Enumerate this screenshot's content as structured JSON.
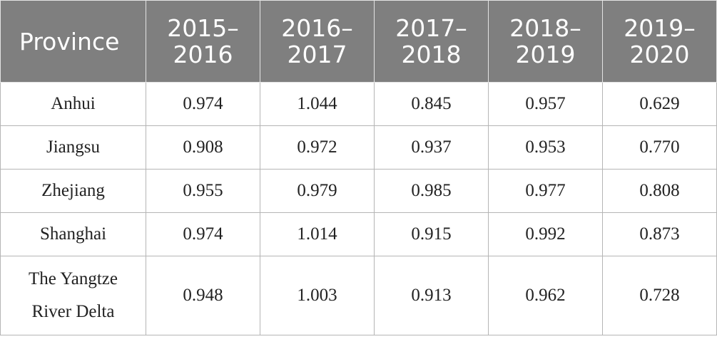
{
  "table": {
    "headers": [
      {
        "line1": "Province",
        "line2": ""
      },
      {
        "line1": "2015–",
        "line2": "2016"
      },
      {
        "line1": "2016–",
        "line2": "2017"
      },
      {
        "line1": "2017–",
        "line2": "2018"
      },
      {
        "line1": "2018–",
        "line2": "2019"
      },
      {
        "line1": "2019–",
        "line2": "2020"
      }
    ],
    "rows": [
      {
        "name_line1": "Anhui",
        "name_line2": "",
        "values": [
          "0.974",
          "1.044",
          "0.845",
          "0.957",
          "0.629"
        ]
      },
      {
        "name_line1": "Jiangsu",
        "name_line2": "",
        "values": [
          "0.908",
          "0.972",
          "0.937",
          "0.953",
          "0.770"
        ]
      },
      {
        "name_line1": "Zhejiang",
        "name_line2": "",
        "values": [
          "0.955",
          "0.979",
          "0.985",
          "0.977",
          "0.808"
        ]
      },
      {
        "name_line1": "Shanghai",
        "name_line2": "",
        "values": [
          "0.974",
          "1.014",
          "0.915",
          "0.992",
          "0.873"
        ]
      },
      {
        "name_line1": "The Yangtze",
        "name_line2": "River Delta",
        "values": [
          "0.948",
          "1.003",
          "0.913",
          "0.962",
          "0.728"
        ]
      }
    ]
  }
}
